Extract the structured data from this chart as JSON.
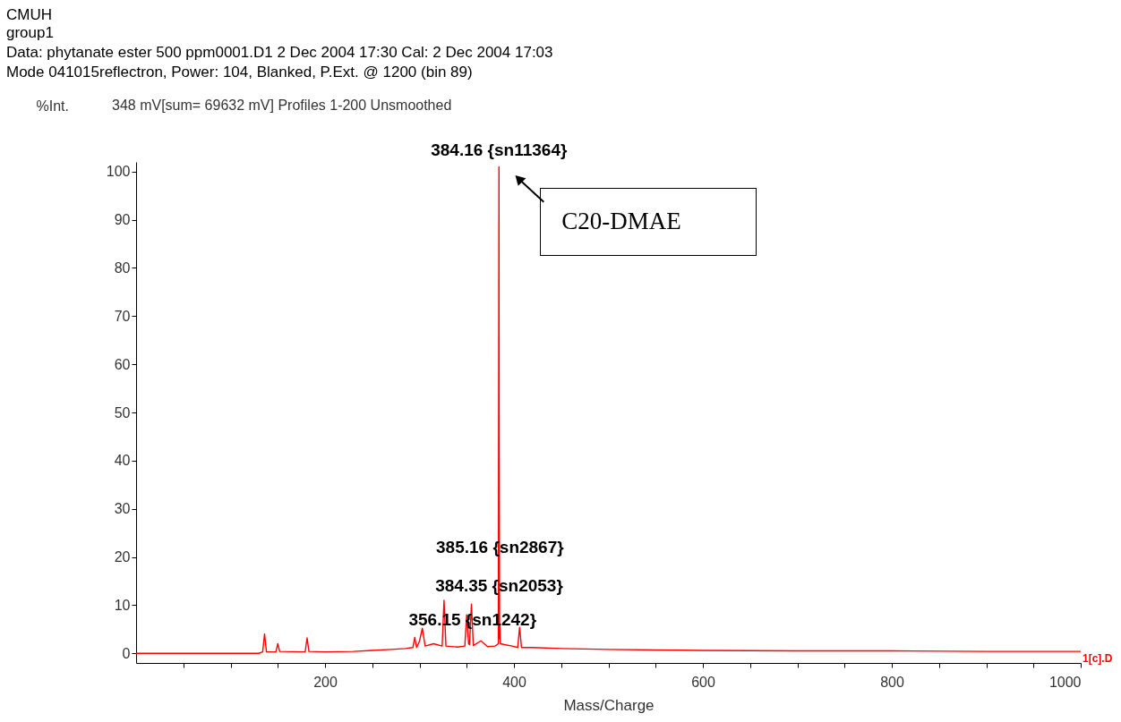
{
  "chart_data": {
    "type": "line",
    "title": "CMUH",
    "subtitle": "group1",
    "xlabel": "Mass/Charge",
    "ylabel": "%Int.",
    "annotations": [
      "Data: phytanate ester 500 ppm0001.D1 2 Dec 2004 17:30 Cal: 2 Dec 2004 17:03",
      "Mode 041015reflectron, Power: 104, Blanked, P.Ext. @ 1200 (bin 89)",
      "348 mV[sum= 69632 mV]  Profiles 1-200 Unsmoothed",
      "1[c].D",
      {
        "text": "384.16 {sn11364}",
        "x": 384.16,
        "y": 101
      },
      {
        "text": "385.16 {sn2867}",
        "x": 385.16,
        "y": 22
      },
      {
        "text": "384.35 {sn2053}",
        "x": 384.35,
        "y": 14
      },
      {
        "text": "356.15 {sn1242}",
        "x": 356.15,
        "y": 7
      },
      {
        "text": "C20-DMAE",
        "x": 384.16,
        "y": 100
      }
    ],
    "series": [
      {
        "color": "#ff0000",
        "x": [
          0,
          130,
          134,
          136,
          138,
          148,
          150,
          152,
          179,
          181,
          183,
          200,
          230,
          250,
          270,
          285,
          293,
          295,
          297,
          300,
          303,
          306,
          315,
          324,
          326,
          328,
          340,
          348,
          350,
          352,
          353,
          355,
          357,
          365,
          372,
          380,
          383.5,
          384.16,
          384.35,
          384.8,
          385.16,
          385.6,
          390,
          398,
          404,
          406,
          408,
          420,
          450,
          500,
          550,
          600,
          700,
          800,
          900,
          1000
        ],
        "values": [
          0,
          0,
          0.3,
          4.0,
          0.3,
          0.3,
          2.0,
          0.4,
          0.3,
          3.2,
          0.4,
          0.3,
          0.4,
          0.6,
          0.8,
          1.0,
          1.2,
          3.3,
          1.2,
          2.5,
          5.2,
          1.5,
          2.0,
          1.5,
          11,
          1.5,
          1.3,
          1.5,
          8,
          2,
          1.8,
          10.2,
          1.6,
          2.6,
          1.4,
          1.5,
          2,
          101,
          50,
          3,
          6,
          2,
          1.8,
          1.5,
          1.2,
          5.4,
          1.2,
          1.2,
          1.0,
          0.8,
          0.7,
          0.6,
          0.5,
          0.5,
          0.4,
          0.4
        ]
      }
    ],
    "xlim": [
      0,
      1000
    ],
    "xticks": [
      {
        "value": 50,
        "label": null
      },
      {
        "value": 100,
        "label": null
      },
      {
        "value": 150,
        "label": null
      },
      200,
      {
        "value": 250,
        "label": null
      },
      {
        "value": 300,
        "label": null
      },
      {
        "value": 350,
        "label": null
      },
      400,
      {
        "value": 450,
        "label": null
      },
      {
        "value": 500,
        "label": null
      },
      {
        "value": 550,
        "label": null
      },
      600,
      {
        "value": 650,
        "label": null
      },
      {
        "value": 700,
        "label": null
      },
      {
        "value": 750,
        "label": null
      },
      800,
      {
        "value": 850,
        "label": null
      },
      {
        "value": 900,
        "label": null
      },
      {
        "value": 950,
        "label": null
      },
      1000
    ],
    "ylim": [
      -2,
      102
    ],
    "yticks": [
      0,
      10,
      20,
      30,
      40,
      50,
      60,
      70,
      80,
      90,
      100
    ],
    "grid": false,
    "legend": false,
    "marker": "none"
  }
}
